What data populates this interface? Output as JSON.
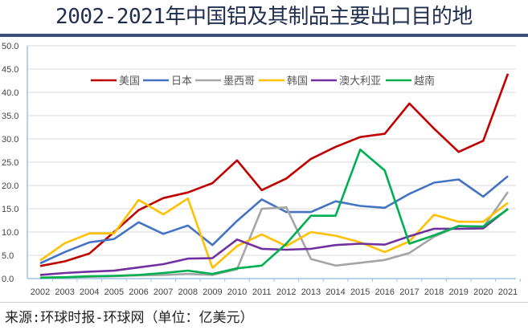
{
  "title": "2002-2021年中国铝及其制品主要出口目的地",
  "footer": "来源:环球时报-环球网（单位：亿美元）",
  "chart_data": {
    "type": "line",
    "title": "2002-2021年中国铝及其制品主要出口目的地",
    "xlabel": "",
    "ylabel": "",
    "ylim": [
      0,
      50
    ],
    "yticks": [
      "0.0",
      "5.0",
      "10.0",
      "15.0",
      "20.0",
      "25.0",
      "30.0",
      "35.0",
      "40.0",
      "45.0",
      "50.0"
    ],
    "grid": true,
    "legend": "top",
    "categories": [
      "2002",
      "2003",
      "2004",
      "2005",
      "2006",
      "2007",
      "2008",
      "2009",
      "2010",
      "2011",
      "2012",
      "2013",
      "2014",
      "2015",
      "2016",
      "2017",
      "2018",
      "2019",
      "2020",
      "2021"
    ],
    "series": [
      {
        "name": "美国",
        "color": "#c00000",
        "values": [
          2.7,
          3.7,
          5.4,
          10.0,
          14.7,
          17.3,
          18.5,
          20.5,
          25.4,
          19.0,
          21.5,
          25.7,
          28.3,
          30.4,
          31.1,
          37.6,
          32.2,
          27.2,
          29.6,
          44.0
        ]
      },
      {
        "name": "日本",
        "color": "#4472c4",
        "values": [
          3.3,
          5.7,
          7.8,
          8.5,
          12.1,
          9.6,
          11.4,
          7.2,
          12.4,
          17.0,
          14.3,
          14.3,
          16.6,
          15.6,
          15.2,
          18.2,
          20.6,
          21.3,
          17.6,
          22.0
        ]
      },
      {
        "name": "墨西哥",
        "color": "#a5a5a5",
        "values": [
          0.2,
          0.3,
          0.4,
          0.5,
          0.7,
          0.8,
          1.0,
          0.8,
          2.0,
          15.0,
          15.3,
          4.2,
          2.8,
          3.4,
          4.0,
          5.5,
          9.0,
          11.3,
          11.0,
          18.6
        ]
      },
      {
        "name": "韩国",
        "color": "#ffc000",
        "values": [
          3.9,
          7.6,
          9.7,
          9.7,
          16.9,
          13.8,
          17.2,
          2.3,
          7.0,
          9.5,
          7.0,
          10.0,
          9.2,
          7.8,
          5.7,
          8.0,
          13.7,
          12.2,
          12.2,
          16.3
        ]
      },
      {
        "name": "澳大利亚",
        "color": "#7030a0",
        "values": [
          0.8,
          1.2,
          1.5,
          1.7,
          2.4,
          3.1,
          4.3,
          4.4,
          8.4,
          6.4,
          6.2,
          6.4,
          7.2,
          7.5,
          7.3,
          9.1,
          10.7,
          10.7,
          10.8,
          15.0
        ]
      },
      {
        "name": "越南",
        "color": "#00b050",
        "values": [
          0.2,
          0.3,
          0.5,
          0.6,
          0.8,
          1.2,
          1.7,
          1.0,
          2.2,
          2.8,
          7.5,
          13.5,
          13.5,
          27.7,
          23.2,
          7.5,
          9.3,
          11.3,
          11.2,
          14.9
        ]
      }
    ]
  }
}
